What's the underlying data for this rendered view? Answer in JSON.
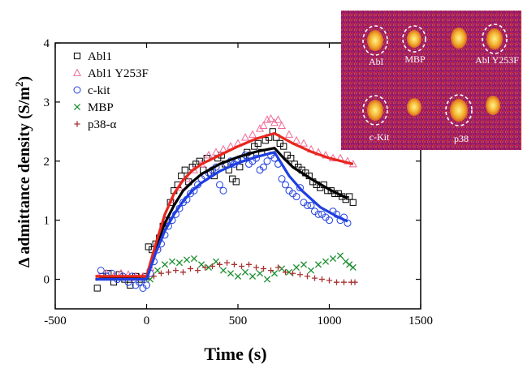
{
  "chart_data": {
    "type": "scatter",
    "xlabel": "Time (s)",
    "ylabel": "Δ admittance density (S/m²)",
    "xlim": [
      -500,
      1500
    ],
    "ylim": [
      -0.5,
      4
    ],
    "xticks": [
      -500,
      0,
      500,
      1000,
      1500
    ],
    "yticks": [
      0,
      1,
      2,
      3,
      4
    ],
    "legend_position": "top-left",
    "series": [
      {
        "name": "Abl1",
        "marker": "open-square",
        "color": "#000000",
        "points": [
          [
            -270,
            -0.15
          ],
          [
            -240,
            0.05
          ],
          [
            -210,
            0.1
          ],
          [
            -180,
            -0.05
          ],
          [
            -150,
            0.08
          ],
          [
            -120,
            0.0
          ],
          [
            -90,
            -0.1
          ],
          [
            -60,
            0.05
          ],
          [
            -30,
            0.0
          ],
          [
            -5,
            0.05
          ],
          [
            10,
            0.55
          ],
          [
            30,
            0.5
          ],
          [
            50,
            0.6
          ],
          [
            70,
            0.7
          ],
          [
            90,
            0.9
          ],
          [
            110,
            1.0
          ],
          [
            130,
            1.3
          ],
          [
            150,
            1.5
          ],
          [
            170,
            1.6
          ],
          [
            190,
            1.75
          ],
          [
            210,
            1.85
          ],
          [
            230,
            1.65
          ],
          [
            250,
            1.9
          ],
          [
            270,
            1.95
          ],
          [
            290,
            2.0
          ],
          [
            310,
            1.85
          ],
          [
            330,
            2.05
          ],
          [
            350,
            1.8
          ],
          [
            370,
            1.75
          ],
          [
            390,
            2.05
          ],
          [
            410,
            2.1
          ],
          [
            430,
            1.95
          ],
          [
            450,
            1.85
          ],
          [
            470,
            1.7
          ],
          [
            490,
            1.65
          ],
          [
            510,
            1.9
          ],
          [
            530,
            2.05
          ],
          [
            550,
            2.15
          ],
          [
            570,
            2.1
          ],
          [
            590,
            2.25
          ],
          [
            610,
            2.3
          ],
          [
            630,
            2.15
          ],
          [
            650,
            2.35
          ],
          [
            670,
            2.4
          ],
          [
            690,
            2.5
          ],
          [
            710,
            2.4
          ],
          [
            730,
            2.3
          ],
          [
            750,
            2.25
          ],
          [
            770,
            2.1
          ],
          [
            790,
            2.05
          ],
          [
            810,
            1.95
          ],
          [
            830,
            1.9
          ],
          [
            850,
            1.85
          ],
          [
            870,
            1.8
          ],
          [
            890,
            1.75
          ],
          [
            910,
            1.65
          ],
          [
            930,
            1.6
          ],
          [
            950,
            1.55
          ],
          [
            970,
            1.6
          ],
          [
            990,
            1.5
          ],
          [
            1010,
            1.5
          ],
          [
            1030,
            1.45
          ],
          [
            1050,
            1.45
          ],
          [
            1070,
            1.4
          ],
          [
            1090,
            1.35
          ],
          [
            1110,
            1.4
          ],
          [
            1130,
            1.3
          ]
        ]
      },
      {
        "name": "Abl1 Y253F",
        "marker": "open-triangle",
        "color": "#f06a9a",
        "points": [
          [
            -260,
            0.05
          ],
          [
            -220,
            0.1
          ],
          [
            -180,
            0.05
          ],
          [
            -140,
            0.1
          ],
          [
            -100,
            0.08
          ],
          [
            -60,
            0.05
          ],
          [
            -20,
            0.05
          ],
          [
            20,
            0.2
          ],
          [
            60,
            0.55
          ],
          [
            100,
            1.0
          ],
          [
            140,
            1.35
          ],
          [
            180,
            1.55
          ],
          [
            220,
            1.7
          ],
          [
            260,
            1.85
          ],
          [
            300,
            1.95
          ],
          [
            340,
            2.1
          ],
          [
            380,
            2.15
          ],
          [
            420,
            2.2
          ],
          [
            460,
            2.25
          ],
          [
            500,
            2.3
          ],
          [
            540,
            2.4
          ],
          [
            580,
            2.45
          ],
          [
            620,
            2.55
          ],
          [
            640,
            2.6
          ],
          [
            660,
            2.7
          ],
          [
            680,
            2.72
          ],
          [
            700,
            2.65
          ],
          [
            720,
            2.7
          ],
          [
            740,
            2.6
          ],
          [
            780,
            2.45
          ],
          [
            820,
            2.35
          ],
          [
            860,
            2.3
          ],
          [
            900,
            2.2
          ],
          [
            940,
            2.15
          ],
          [
            980,
            2.1
          ],
          [
            1020,
            2.05
          ],
          [
            1060,
            2.05
          ],
          [
            1100,
            2.0
          ],
          [
            1130,
            1.95
          ]
        ]
      },
      {
        "name": "c-kit",
        "marker": "open-circle",
        "color": "#1f3fe0",
        "points": [
          [
            -250,
            0.15
          ],
          [
            -220,
            0.05
          ],
          [
            -190,
            0.1
          ],
          [
            -160,
            0.0
          ],
          [
            -130,
            0.05
          ],
          [
            -100,
            -0.05
          ],
          [
            -80,
            0.05
          ],
          [
            -60,
            -0.1
          ],
          [
            -40,
            -0.05
          ],
          [
            -20,
            -0.15
          ],
          [
            0,
            -0.1
          ],
          [
            20,
            0.1
          ],
          [
            40,
            0.3
          ],
          [
            60,
            0.5
          ],
          [
            80,
            0.6
          ],
          [
            100,
            0.75
          ],
          [
            120,
            0.9
          ],
          [
            140,
            1.0
          ],
          [
            160,
            1.1
          ],
          [
            180,
            1.2
          ],
          [
            200,
            1.3
          ],
          [
            220,
            1.35
          ],
          [
            240,
            1.45
          ],
          [
            260,
            1.5
          ],
          [
            280,
            1.6
          ],
          [
            300,
            1.7
          ],
          [
            320,
            1.75
          ],
          [
            340,
            1.8
          ],
          [
            360,
            1.85
          ],
          [
            380,
            1.9
          ],
          [
            400,
            1.6
          ],
          [
            420,
            1.5
          ],
          [
            440,
            1.95
          ],
          [
            460,
            2.0
          ],
          [
            480,
            1.95
          ],
          [
            500,
            2.0
          ],
          [
            520,
            2.05
          ],
          [
            540,
            2.1
          ],
          [
            560,
            1.95
          ],
          [
            580,
            2.0
          ],
          [
            600,
            2.05
          ],
          [
            620,
            1.85
          ],
          [
            640,
            1.9
          ],
          [
            660,
            2.0
          ],
          [
            680,
            2.1
          ],
          [
            700,
            2.05
          ],
          [
            720,
            1.95
          ],
          [
            740,
            1.7
          ],
          [
            760,
            1.6
          ],
          [
            780,
            1.5
          ],
          [
            800,
            1.45
          ],
          [
            820,
            1.4
          ],
          [
            840,
            1.55
          ],
          [
            860,
            1.3
          ],
          [
            880,
            1.25
          ],
          [
            900,
            1.25
          ],
          [
            920,
            1.15
          ],
          [
            940,
            1.1
          ],
          [
            960,
            1.1
          ],
          [
            980,
            1.05
          ],
          [
            1000,
            1.0
          ],
          [
            1020,
            1.15
          ],
          [
            1040,
            1.1
          ],
          [
            1060,
            1.0
          ],
          [
            1080,
            1.05
          ],
          [
            1100,
            0.95
          ]
        ]
      },
      {
        "name": "MBP",
        "marker": "cross",
        "color": "#1a8f2e",
        "points": [
          [
            20,
            0.0
          ],
          [
            60,
            0.15
          ],
          [
            100,
            0.25
          ],
          [
            140,
            0.3
          ],
          [
            180,
            0.28
          ],
          [
            220,
            0.33
          ],
          [
            260,
            0.35
          ],
          [
            300,
            0.25
          ],
          [
            340,
            0.2
          ],
          [
            380,
            0.3
          ],
          [
            420,
            0.15
          ],
          [
            460,
            0.1
          ],
          [
            500,
            0.05
          ],
          [
            540,
            0.12
          ],
          [
            580,
            0.05
          ],
          [
            620,
            0.1
          ],
          [
            660,
            0.0
          ],
          [
            700,
            0.1
          ],
          [
            740,
            0.18
          ],
          [
            780,
            0.12
          ],
          [
            820,
            0.2
          ],
          [
            860,
            0.25
          ],
          [
            900,
            0.15
          ],
          [
            940,
            0.25
          ],
          [
            980,
            0.3
          ],
          [
            1020,
            0.35
          ],
          [
            1060,
            0.4
          ],
          [
            1090,
            0.3
          ],
          [
            1110,
            0.25
          ],
          [
            1130,
            0.2
          ]
        ]
      },
      {
        "name": "p38-α",
        "marker": "plus",
        "color": "#a83232",
        "points": [
          [
            -80,
            0.0
          ],
          [
            -40,
            0.05
          ],
          [
            0,
            0.02
          ],
          [
            40,
            0.05
          ],
          [
            80,
            0.1
          ],
          [
            120,
            0.12
          ],
          [
            160,
            0.15
          ],
          [
            200,
            0.12
          ],
          [
            240,
            0.18
          ],
          [
            280,
            0.15
          ],
          [
            320,
            0.2
          ],
          [
            360,
            0.22
          ],
          [
            400,
            0.25
          ],
          [
            440,
            0.28
          ],
          [
            480,
            0.25
          ],
          [
            520,
            0.22
          ],
          [
            560,
            0.25
          ],
          [
            600,
            0.2
          ],
          [
            640,
            0.18
          ],
          [
            680,
            0.15
          ],
          [
            720,
            0.2
          ],
          [
            760,
            0.12
          ],
          [
            800,
            0.1
          ],
          [
            840,
            0.08
          ],
          [
            880,
            0.05
          ],
          [
            920,
            0.02
          ],
          [
            960,
            0.0
          ],
          [
            1000,
            -0.02
          ],
          [
            1040,
            -0.05
          ],
          [
            1080,
            -0.05
          ],
          [
            1120,
            -0.05
          ],
          [
            1140,
            -0.05
          ]
        ]
      }
    ],
    "fits": [
      {
        "color": "#000000",
        "points": [
          [
            -280,
            0.0
          ],
          [
            0,
            0.05
          ],
          [
            50,
            0.55
          ],
          [
            100,
            0.95
          ],
          [
            150,
            1.25
          ],
          [
            200,
            1.5
          ],
          [
            250,
            1.65
          ],
          [
            300,
            1.78
          ],
          [
            400,
            1.95
          ],
          [
            500,
            2.07
          ],
          [
            600,
            2.16
          ],
          [
            700,
            2.22
          ],
          [
            750,
            2.05
          ],
          [
            800,
            1.9
          ],
          [
            900,
            1.7
          ],
          [
            1000,
            1.52
          ],
          [
            1100,
            1.37
          ]
        ]
      },
      {
        "color": "#e8261d",
        "points": [
          [
            -280,
            0.05
          ],
          [
            0,
            0.05
          ],
          [
            50,
            0.6
          ],
          [
            100,
            1.1
          ],
          [
            150,
            1.45
          ],
          [
            200,
            1.68
          ],
          [
            250,
            1.84
          ],
          [
            300,
            1.95
          ],
          [
            400,
            2.1
          ],
          [
            500,
            2.25
          ],
          [
            600,
            2.38
          ],
          [
            700,
            2.47
          ],
          [
            800,
            2.3
          ],
          [
            900,
            2.16
          ],
          [
            1000,
            2.05
          ],
          [
            1130,
            1.95
          ]
        ]
      },
      {
        "color": "#1f3fe0",
        "points": [
          [
            -280,
            0.0
          ],
          [
            0,
            0.0
          ],
          [
            50,
            0.45
          ],
          [
            100,
            0.82
          ],
          [
            150,
            1.1
          ],
          [
            200,
            1.32
          ],
          [
            250,
            1.5
          ],
          [
            300,
            1.63
          ],
          [
            400,
            1.83
          ],
          [
            500,
            1.97
          ],
          [
            600,
            2.07
          ],
          [
            700,
            2.15
          ],
          [
            780,
            1.75
          ],
          [
            850,
            1.5
          ],
          [
            950,
            1.22
          ],
          [
            1050,
            1.05
          ],
          [
            1100,
            0.98
          ]
        ]
      }
    ]
  },
  "inset": {
    "labels": [
      "Abl",
      "MBP",
      "Abl Y253F",
      "c-Kit",
      "p38"
    ]
  }
}
